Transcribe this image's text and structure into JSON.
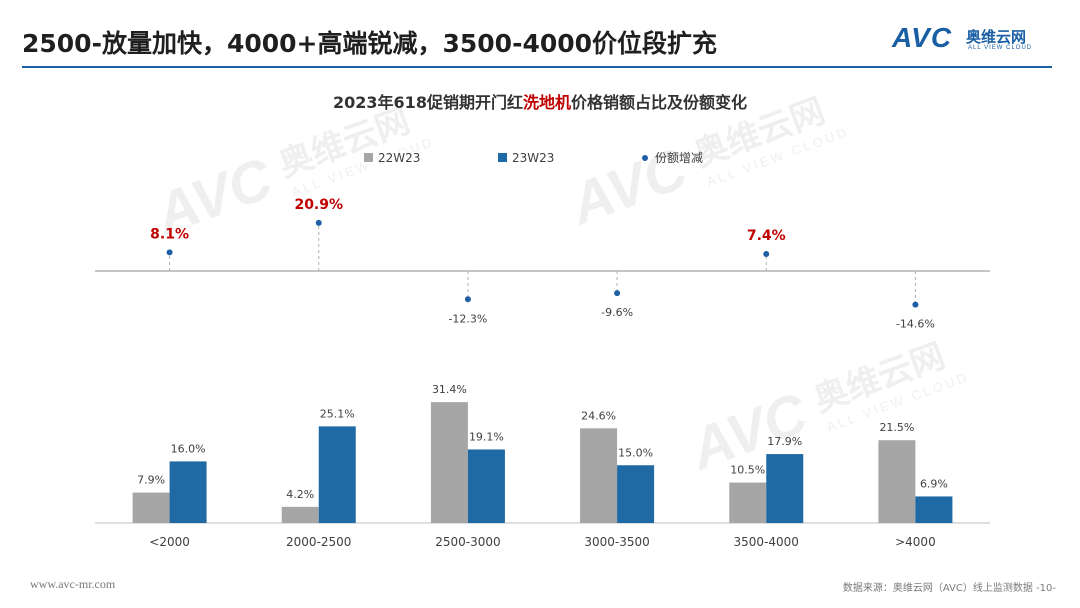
{
  "page": {
    "title": "2500-放量加快，4000+高端锐减，3500-4000价位段扩充",
    "footer_url": "www.avc-mr.com",
    "footer_source": "数据来源：奥维云网（AVC）线上监测数据  -10-"
  },
  "logo": {
    "mark": "AVC",
    "name_cn": "奥维云网",
    "name_en": "ALL VIEW CLOUD"
  },
  "colors": {
    "series_22": "#a6a6a6",
    "series_23": "#1f6aa5",
    "dot": "#1f5fa6",
    "highlight": "#c00000",
    "brand": "#1a5fa3"
  },
  "chart_data": {
    "type": "bar",
    "title_parts": [
      "2023年618促销期开门红",
      "洗地机",
      "价格销额占比及份额变化"
    ],
    "categories": [
      "<2000",
      "2000-2500",
      "2500-3000",
      "3000-3500",
      "3500-4000",
      ">4000"
    ],
    "series": [
      {
        "name": "22W23",
        "values": [
          7.9,
          4.2,
          31.4,
          24.6,
          10.5,
          21.5
        ]
      },
      {
        "name": "23W23",
        "values": [
          16.0,
          25.1,
          19.1,
          15.0,
          17.9,
          6.9
        ]
      }
    ],
    "bar_labels": {
      "22W23": [
        "7.9%",
        "4.2%",
        "31.4%",
        "24.6%",
        "10.5%",
        "21.5%"
      ],
      "23W23": [
        "16.0%",
        "25.1%",
        "19.1%",
        "15.0%",
        "17.9%",
        "6.9%"
      ]
    },
    "share_change": {
      "name": "份额增减",
      "values": [
        8.1,
        20.9,
        -12.3,
        -9.6,
        7.4,
        -14.6
      ],
      "labels": [
        "8.1%",
        "20.9%",
        "-12.3%",
        "-9.6%",
        "7.4%",
        "-14.6%"
      ]
    },
    "legend": [
      "22W23",
      "23W23",
      "份额增减"
    ]
  }
}
